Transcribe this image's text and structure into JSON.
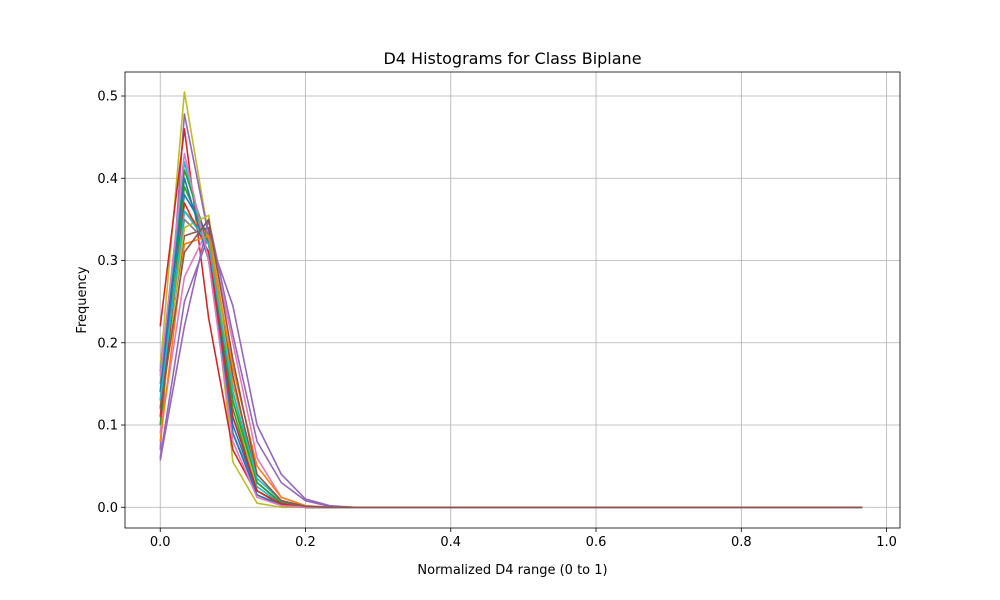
{
  "chart_data": {
    "type": "line",
    "title": "D4 Histograms for Class Biplane",
    "xlabel": "Normalized D4 range (0 to 1)",
    "ylabel": "Frequency",
    "xlim": [
      -0.0485,
      1.0185
    ],
    "ylim": [
      -0.0252,
      0.5292
    ],
    "xticks": [
      0.0,
      0.2,
      0.4,
      0.6,
      0.8,
      1.0
    ],
    "xtick_labels": [
      "0.0",
      "0.2",
      "0.4",
      "0.6",
      "0.8",
      "1.0"
    ],
    "yticks": [
      0.0,
      0.1,
      0.2,
      0.3,
      0.4,
      0.5
    ],
    "ytick_labels": [
      "0.0",
      "0.1",
      "0.2",
      "0.3",
      "0.4",
      "0.5"
    ],
    "grid": true,
    "legend": "none",
    "x": [
      0.0,
      0.0333,
      0.0667,
      0.1,
      0.1333,
      0.1667,
      0.2,
      0.2333,
      0.2667,
      0.3,
      0.3333,
      0.3667,
      0.4,
      0.4333,
      0.4667,
      0.5,
      0.5333,
      0.5667,
      0.6,
      0.6333,
      0.6667,
      0.7,
      0.7333,
      0.7667,
      0.8,
      0.8333,
      0.8667,
      0.9,
      0.9333,
      0.9667
    ],
    "series": [
      {
        "color": "#bcbd22",
        "values": [
          0.17,
          0.505,
          0.33,
          0.055,
          0.005,
          0.0,
          0,
          0,
          0,
          0,
          0,
          0,
          0,
          0,
          0,
          0,
          0,
          0,
          0,
          0,
          0,
          0,
          0,
          0,
          0,
          0,
          0,
          0,
          0,
          0
        ]
      },
      {
        "color": "#9467bd",
        "values": [
          0.07,
          0.478,
          0.33,
          0.09,
          0.02,
          0.003,
          0.0,
          0,
          0,
          0,
          0,
          0,
          0,
          0,
          0,
          0,
          0,
          0,
          0,
          0,
          0,
          0,
          0,
          0,
          0,
          0,
          0,
          0,
          0,
          0
        ]
      },
      {
        "color": "#d62728",
        "values": [
          0.22,
          0.46,
          0.23,
          0.07,
          0.015,
          0.003,
          0.0,
          0,
          0,
          0,
          0,
          0,
          0,
          0,
          0,
          0,
          0,
          0,
          0,
          0,
          0,
          0,
          0,
          0,
          0,
          0,
          0,
          0,
          0,
          0
        ]
      },
      {
        "color": "#17becf",
        "values": [
          0.14,
          0.42,
          0.3,
          0.11,
          0.025,
          0.004,
          0.0,
          0,
          0,
          0,
          0,
          0,
          0,
          0,
          0,
          0,
          0,
          0,
          0,
          0,
          0,
          0,
          0,
          0,
          0,
          0,
          0,
          0,
          0,
          0
        ]
      },
      {
        "color": "#2ca02c",
        "values": [
          0.12,
          0.41,
          0.32,
          0.12,
          0.02,
          0.003,
          0.0,
          0,
          0,
          0,
          0,
          0,
          0,
          0,
          0,
          0,
          0,
          0,
          0,
          0,
          0,
          0,
          0,
          0,
          0,
          0,
          0,
          0,
          0,
          0
        ]
      },
      {
        "color": "#1f77b4",
        "values": [
          0.165,
          0.38,
          0.33,
          0.1,
          0.02,
          0.003,
          0.0,
          0,
          0,
          0,
          0,
          0,
          0,
          0,
          0,
          0,
          0,
          0,
          0,
          0,
          0,
          0,
          0,
          0,
          0,
          0,
          0,
          0,
          0,
          0
        ]
      },
      {
        "color": "#ff7f0e",
        "values": [
          0.1,
          0.36,
          0.33,
          0.15,
          0.04,
          0.008,
          0.001,
          0.0,
          0,
          0,
          0,
          0,
          0,
          0,
          0,
          0,
          0,
          0,
          0,
          0,
          0,
          0,
          0,
          0,
          0,
          0,
          0,
          0,
          0,
          0
        ]
      },
      {
        "color": "#e377c2",
        "values": [
          0.09,
          0.28,
          0.34,
          0.2,
          0.06,
          0.012,
          0.002,
          0.0,
          0,
          0,
          0,
          0,
          0,
          0,
          0,
          0,
          0,
          0,
          0,
          0,
          0,
          0,
          0,
          0,
          0,
          0,
          0,
          0,
          0,
          0
        ]
      },
      {
        "color": "#8c564b",
        "values": [
          0.13,
          0.33,
          0.34,
          0.16,
          0.03,
          0.005,
          0.0,
          0,
          0,
          0,
          0,
          0,
          0,
          0,
          0,
          0,
          0,
          0,
          0,
          0,
          0,
          0,
          0,
          0,
          0,
          0,
          0,
          0,
          0,
          0
        ]
      },
      {
        "color": "#7f7f7f",
        "values": [
          0.15,
          0.35,
          0.32,
          0.14,
          0.03,
          0.006,
          0.001,
          0.0,
          0,
          0,
          0,
          0,
          0,
          0,
          0,
          0,
          0,
          0,
          0,
          0,
          0,
          0,
          0,
          0,
          0,
          0,
          0,
          0,
          0,
          0
        ]
      },
      {
        "color": "#9467bd",
        "values": [
          0.06,
          0.25,
          0.33,
          0.245,
          0.1,
          0.04,
          0.01,
          0.002,
          0.0,
          0,
          0,
          0,
          0,
          0,
          0,
          0,
          0,
          0,
          0,
          0,
          0,
          0,
          0,
          0,
          0,
          0,
          0,
          0,
          0,
          0
        ]
      },
      {
        "color": "#9467bd",
        "values": [
          0.057,
          0.22,
          0.35,
          0.21,
          0.08,
          0.03,
          0.008,
          0.001,
          0.0,
          0,
          0,
          0,
          0,
          0,
          0,
          0,
          0,
          0,
          0,
          0,
          0,
          0,
          0,
          0,
          0,
          0,
          0,
          0,
          0,
          0
        ]
      },
      {
        "color": "#bcbd22",
        "values": [
          0.12,
          0.34,
          0.355,
          0.13,
          0.02,
          0.004,
          0.0,
          0,
          0,
          0,
          0,
          0,
          0,
          0,
          0,
          0,
          0,
          0,
          0,
          0,
          0,
          0,
          0,
          0,
          0,
          0,
          0,
          0,
          0,
          0
        ]
      },
      {
        "color": "#2ca02c",
        "values": [
          0.1,
          0.39,
          0.32,
          0.13,
          0.03,
          0.005,
          0.0,
          0,
          0,
          0,
          0,
          0,
          0,
          0,
          0,
          0,
          0,
          0,
          0,
          0,
          0,
          0,
          0,
          0,
          0,
          0,
          0,
          0,
          0,
          0
        ]
      },
      {
        "color": "#d62728",
        "values": [
          0.11,
          0.37,
          0.31,
          0.11,
          0.02,
          0.004,
          0.0,
          0,
          0,
          0,
          0,
          0,
          0,
          0,
          0,
          0,
          0,
          0,
          0,
          0,
          0,
          0,
          0,
          0,
          0,
          0,
          0,
          0,
          0,
          0
        ]
      },
      {
        "color": "#1f77b4",
        "values": [
          0.14,
          0.4,
          0.3,
          0.09,
          0.015,
          0.002,
          0.0,
          0,
          0,
          0,
          0,
          0,
          0,
          0,
          0,
          0,
          0,
          0,
          0,
          0,
          0,
          0,
          0,
          0,
          0,
          0,
          0,
          0,
          0,
          0
        ]
      },
      {
        "color": "#ff7f0e",
        "values": [
          0.08,
          0.32,
          0.33,
          0.17,
          0.05,
          0.012,
          0.002,
          0.0,
          0,
          0,
          0,
          0,
          0,
          0,
          0,
          0,
          0,
          0,
          0,
          0,
          0,
          0,
          0,
          0,
          0,
          0,
          0,
          0,
          0,
          0
        ]
      },
      {
        "color": "#17becf",
        "values": [
          0.13,
          0.36,
          0.32,
          0.14,
          0.035,
          0.008,
          0.001,
          0.0,
          0,
          0,
          0,
          0,
          0,
          0,
          0,
          0,
          0,
          0,
          0,
          0,
          0,
          0,
          0,
          0,
          0,
          0,
          0,
          0,
          0,
          0
        ]
      },
      {
        "color": "#e377c2",
        "values": [
          0.16,
          0.43,
          0.3,
          0.08,
          0.012,
          0.002,
          0.0,
          0,
          0,
          0,
          0,
          0,
          0,
          0,
          0,
          0,
          0,
          0,
          0,
          0,
          0,
          0,
          0,
          0,
          0,
          0,
          0,
          0,
          0,
          0
        ]
      },
      {
        "color": "#8c564b",
        "values": [
          0.12,
          0.31,
          0.35,
          0.18,
          0.04,
          0.008,
          0.001,
          0.0,
          0,
          0,
          0,
          0,
          0,
          0,
          0,
          0,
          0,
          0,
          0,
          0,
          0,
          0,
          0,
          0,
          0,
          0,
          0,
          0,
          0,
          0
        ]
      }
    ]
  }
}
